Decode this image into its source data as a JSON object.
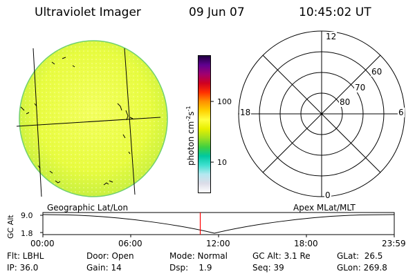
{
  "header": {
    "instrument": "Ultraviolet Imager",
    "date": "09 Jun 07",
    "time": "10:45:02 UT"
  },
  "colorbar": {
    "label": "photon cm",
    "label_sup1": "-2",
    "label_mid": "s",
    "label_sup2": "-1",
    "ticks": [
      "100",
      "10"
    ],
    "colors": [
      "#ffffff",
      "#dcdce8",
      "#b4e8f0",
      "#40e0d0",
      "#00c8a0",
      "#40d040",
      "#a0e020",
      "#e8f000",
      "#ffff40",
      "#ffd000",
      "#ff9000",
      "#ff3000",
      "#d00020",
      "#a00070",
      "#600090",
      "#200040"
    ]
  },
  "polar": {
    "mlt_labels": [
      "12",
      "18",
      "6",
      "0"
    ],
    "lat_labels": [
      "60",
      "70",
      "80"
    ]
  },
  "timeline": {
    "left_label": "Geographic Lat/Lon",
    "right_label": "Apex MLat/MLT",
    "y_axis_title": "GC Alt",
    "y_ticks": [
      "9.0",
      "1.8"
    ],
    "x_ticks": [
      "00:00",
      "06:00",
      "12:00",
      "18:00",
      "23:59"
    ],
    "current_time_fraction": 0.4479,
    "marker_color": "#ff0000"
  },
  "status": {
    "flt": "Flt: LBHL",
    "ip": "IP: 36.0",
    "door": "Door: Open",
    "gain": "Gain: 14",
    "mode": "Mode: Normal",
    "dsp": "Dsp:    1.9",
    "gc_alt": "GC Alt: 3.1 Re",
    "seq": "Seq: 39",
    "glat": "GLat:  26.5",
    "glon": "GLon: 269.8"
  }
}
